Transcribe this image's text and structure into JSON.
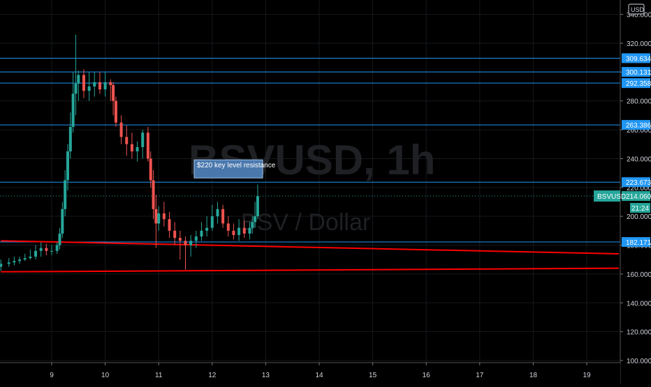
{
  "symbol_watermark": "BSVUSD, 1h",
  "pair_watermark": "BSV / Dollar",
  "currency_badge": "USD",
  "annotation": "$220 key level resistance",
  "chart_data": {
    "type": "line",
    "title": "",
    "xlabel": "",
    "ylabel": "",
    "x_ticks": [
      "9",
      "10",
      "11",
      "12",
      "13",
      "14",
      "15",
      "16",
      "17",
      "18",
      "19"
    ],
    "y_ticks": [
      "100.000",
      "120.000",
      "140.000",
      "160.000",
      "180.000",
      "200.000",
      "220.000",
      "240.000",
      "260.000",
      "280.000",
      "300.000",
      "320.000",
      "340.000"
    ],
    "ylim": [
      100,
      345
    ],
    "xlim": [
      8.05,
      19.6
    ],
    "grid": true,
    "price_line": {
      "label": "BSVUSD",
      "value": "214.060",
      "countdown": "21:24",
      "y": 214.06
    },
    "horizontal_levels": [
      309.634,
      300.131,
      292.358,
      263.386,
      223.673,
      182.171
    ],
    "horizontal_level_labels": [
      "309.634",
      "300.131",
      "292.358",
      "263.386",
      "223.673",
      "182.171"
    ],
    "trendlines": [
      {
        "x1": 8.05,
        "y1": 183,
        "x2": 19.6,
        "y2": 174
      },
      {
        "x1": 8.05,
        "y1": 161.5,
        "x2": 19.6,
        "y2": 164
      }
    ],
    "series": [
      {
        "x": [
          8.05,
          8.2,
          8.3,
          8.4,
          8.5,
          8.6,
          8.7,
          8.8,
          8.9,
          9.0,
          9.1,
          9.15,
          9.2,
          9.25,
          9.3,
          9.35,
          9.4,
          9.45,
          9.5,
          9.6,
          9.7,
          9.8,
          9.9,
          10.0,
          10.1,
          10.15,
          10.2,
          10.3,
          10.4,
          10.5,
          10.6,
          10.7,
          10.8,
          10.85,
          10.9,
          10.95,
          11.0,
          11.1,
          11.2,
          11.3,
          11.4,
          11.5,
          11.6,
          11.7,
          11.8,
          11.9,
          12.0,
          12.1,
          12.2,
          12.3,
          12.4,
          12.5,
          12.6,
          12.7,
          12.75,
          12.8,
          12.85
        ],
        "open": [
          165,
          167,
          168,
          169,
          170,
          171,
          172,
          176,
          178,
          176,
          176,
          180,
          188,
          205,
          225,
          245,
          262,
          285,
          292,
          298,
          287,
          290,
          293,
          288,
          293,
          291,
          280,
          265,
          255,
          250,
          245,
          248,
          258,
          240,
          225,
          205,
          195,
          202,
          198,
          190,
          185,
          183,
          180,
          183,
          186,
          190,
          192,
          200,
          205,
          195,
          190,
          187,
          192,
          188,
          192,
          196,
          200
        ],
        "high": [
          170,
          171,
          172,
          172,
          174,
          177,
          180,
          182,
          181,
          180,
          182,
          192,
          210,
          232,
          250,
          272,
          300,
          326,
          301,
          302,
          300,
          300,
          300,
          300,
          295,
          293,
          283,
          270,
          263,
          258,
          252,
          260,
          262,
          245,
          232,
          215,
          207,
          210,
          203,
          196,
          190,
          186,
          187,
          190,
          196,
          200,
          208,
          210,
          208,
          200,
          195,
          198,
          197,
          196,
          200,
          210,
          222
        ],
        "low": [
          162,
          165,
          166,
          167,
          169,
          170,
          170,
          172,
          173,
          173,
          174,
          177,
          185,
          200,
          218,
          240,
          258,
          270,
          280,
          282,
          280,
          283,
          285,
          283,
          280,
          270,
          262,
          250,
          242,
          240,
          238,
          240,
          238,
          220,
          198,
          178,
          190,
          193,
          185,
          180,
          170,
          163,
          172,
          178,
          183,
          186,
          190,
          195,
          192,
          186,
          184,
          183,
          185,
          184,
          188,
          192,
          198
        ],
        "close": [
          167,
          168,
          169,
          170,
          171,
          172,
          176,
          178,
          176,
          176,
          180,
          188,
          205,
          225,
          245,
          262,
          285,
          292,
          298,
          287,
          290,
          293,
          288,
          293,
          291,
          280,
          265,
          255,
          250,
          245,
          248,
          258,
          240,
          225,
          205,
          195,
          202,
          198,
          190,
          185,
          183,
          180,
          183,
          186,
          190,
          192,
          200,
          205,
          195,
          190,
          187,
          192,
          188,
          192,
          196,
          200,
          214
        ]
      }
    ],
    "colors": {
      "up": "#26a69a",
      "down": "#ef5350",
      "level": "#2196f3",
      "trendline": "#ff0000",
      "price_badge": "#26a69a",
      "annotation_bg": "#4a78ad"
    }
  }
}
